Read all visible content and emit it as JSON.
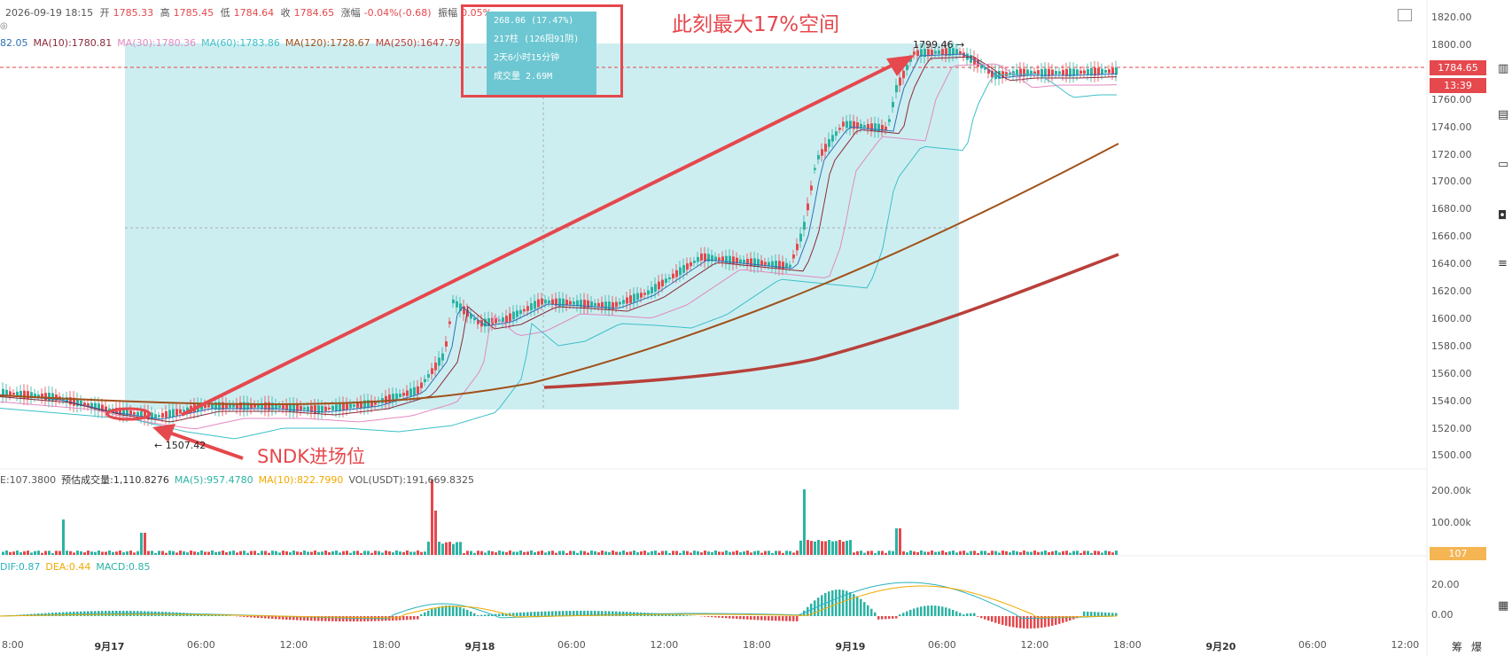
{
  "ohlc": {
    "datetime": "2026-09-19 18:15",
    "open_label": "开",
    "open": "1785.33",
    "high_label": "高",
    "high": "1785.45",
    "low_label": "低",
    "low": "1784.64",
    "close_label": "收",
    "close": "1784.65",
    "change_label": "涨幅",
    "change": "-0.04%(-0.68)",
    "amplitude_label": "振幅",
    "amplitude": "0.05%"
  },
  "ma_indicators": [
    {
      "text": "82.05",
      "color": "#2f6fb6"
    },
    {
      "text": "MA(10):1780.81",
      "color": "#8b2b3b"
    },
    {
      "text": "MA(30):1780.36",
      "color": "#e08ac0"
    },
    {
      "text": "MA(60):1783.86",
      "color": "#3cc0c8"
    },
    {
      "text": "MA(120):1728.67",
      "color": "#a0521b"
    },
    {
      "text": "MA(250):1647.79",
      "color": "#b8403a"
    }
  ],
  "volume_indicators": [
    {
      "text": "E:107.3800",
      "color": "#555555"
    },
    {
      "text": "预估成交量:1,110.8276",
      "color": "#333333"
    },
    {
      "text": "MA(5):957.4780",
      "color": "#2bb3a3"
    },
    {
      "text": "MA(10):822.7990",
      "color": "#f2a900"
    },
    {
      "text": "VOL(USDT):191,669.8325",
      "color": "#555555"
    }
  ],
  "macd_indicators": [
    {
      "text": "DIF:0.87",
      "color": "#2bb3c0"
    },
    {
      "text": "DEA:0.44",
      "color": "#f2a900"
    },
    {
      "text": "MACD:0.85",
      "color": "#2bb3a3"
    }
  ],
  "price_axis": [
    "1820.00",
    "1800.00",
    "1780.00",
    "1760.00",
    "1740.00",
    "1720.00",
    "1700.00",
    "1680.00",
    "1660.00",
    "1640.00",
    "1620.00",
    "1600.00",
    "1580.00",
    "1560.00",
    "1540.00",
    "1520.00",
    "1500.00"
  ],
  "volume_axis": [
    "200.00k",
    "100.00k"
  ],
  "macd_axis": [
    "20.00",
    "0.00"
  ],
  "time_axis": [
    "8:00",
    "9月17",
    "06:00",
    "12:00",
    "18:00",
    "9月18",
    "06:00",
    "12:00",
    "18:00",
    "9月19",
    "06:00",
    "12:00",
    "18:00",
    "9月20",
    "06:00",
    "12:00"
  ],
  "time_axis_bold": [
    false,
    true,
    false,
    false,
    false,
    true,
    false,
    false,
    false,
    true,
    false,
    false,
    false,
    true,
    false,
    false
  ],
  "current_price_tag": "1784.65",
  "countdown_tag": "13:39",
  "volume_tag": "107",
  "measure_box": [
    "268.06 (17.47%)",
    "217柱 (126阳91阴)",
    "2天6小时15分钟",
    "成交量 2.69M"
  ],
  "annotations": {
    "max_space": "此刻最大17%空间",
    "entry": "SNDK进场位",
    "low_marker": "← 1507.42",
    "high_marker": "1799.46 →"
  },
  "footer_right": [
    "筹",
    "爆"
  ],
  "colors": {
    "up": "#2bb3a3",
    "down": "#e5484d",
    "measure_fill": "#cdeef1",
    "annotation": "#e5484d",
    "price_tag": "#e5484d"
  },
  "icons": [
    "fullscreen-icon",
    "candle-chart-icon",
    "measure-icon",
    "table-icon",
    "etf-icon",
    "camera-icon",
    "stack-icon"
  ]
}
